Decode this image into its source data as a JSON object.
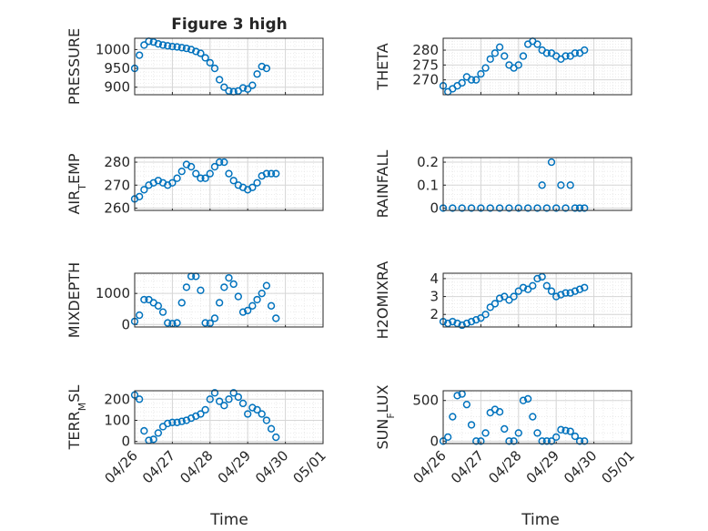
{
  "figure": {
    "title": "Figure 3 high",
    "xlabel": "Time"
  },
  "colors": {
    "marker": "#0072BD",
    "axis": "#262626",
    "grid": "#d6d6d6",
    "minorGrid": "#e6e6e6"
  },
  "chart_data": [
    {
      "type": "scatter",
      "ylabel": "PRESSURE",
      "title": "Figure 3 high",
      "x": [
        "04/26 00:00",
        "04/26 03:00",
        "04/26 06:00",
        "04/26 09:00",
        "04/26 12:00",
        "04/26 15:00",
        "04/26 18:00",
        "04/26 21:00",
        "04/27 00:00",
        "04/27 03:00",
        "04/27 06:00",
        "04/27 09:00",
        "04/27 12:00",
        "04/27 15:00",
        "04/27 18:00",
        "04/27 21:00",
        "04/28 00:00",
        "04/28 03:00",
        "04/28 06:00",
        "04/28 09:00",
        "04/28 12:00",
        "04/28 15:00",
        "04/28 18:00",
        "04/28 21:00",
        "04/29 00:00",
        "04/29 03:00",
        "04/29 06:00",
        "04/29 09:00",
        "04/29 12:00",
        "04/29 15:00",
        "04/29 18:00",
        "04/29 21:00"
      ],
      "y": [
        950,
        985,
        1012,
        1022,
        1020,
        1015,
        1012,
        1010,
        1008,
        1007,
        1005,
        1003,
        1000,
        995,
        990,
        978,
        965,
        950,
        920,
        900,
        890,
        888,
        890,
        898,
        895,
        905,
        935,
        955,
        950,
        null,
        null,
        null
      ],
      "yticks": [
        900,
        950,
        1000
      ],
      "ylim": [
        880,
        1030
      ],
      "grid": true
    },
    {
      "type": "scatter",
      "ylabel": "THETA",
      "x": [
        "04/26 00:00",
        "04/26 03:00",
        "04/26 06:00",
        "04/26 09:00",
        "04/26 12:00",
        "04/26 15:00",
        "04/26 18:00",
        "04/26 21:00",
        "04/27 00:00",
        "04/27 03:00",
        "04/27 06:00",
        "04/27 09:00",
        "04/27 12:00",
        "04/27 15:00",
        "04/27 18:00",
        "04/27 21:00",
        "04/28 00:00",
        "04/28 03:00",
        "04/28 06:00",
        "04/28 09:00",
        "04/28 12:00",
        "04/28 15:00",
        "04/28 18:00",
        "04/28 21:00",
        "04/29 00:00",
        "04/29 03:00",
        "04/29 06:00",
        "04/29 09:00",
        "04/29 12:00",
        "04/29 15:00",
        "04/29 18:00"
      ],
      "y": [
        268,
        266,
        267,
        268,
        269,
        271,
        270,
        270,
        272,
        274,
        277,
        279,
        281,
        278,
        275,
        274,
        275,
        278,
        282,
        283,
        282,
        280,
        279,
        279,
        278,
        277,
        278,
        278,
        279,
        279,
        280
      ],
      "yticks": [
        270,
        275,
        280
      ],
      "ylim": [
        265,
        284
      ],
      "grid": true
    },
    {
      "type": "scatter",
      "ylabel": "AIR_TEMP",
      "x": [
        "04/26 00:00",
        "04/26 03:00",
        "04/26 06:00",
        "04/26 09:00",
        "04/26 12:00",
        "04/26 15:00",
        "04/26 18:00",
        "04/26 21:00",
        "04/27 00:00",
        "04/27 03:00",
        "04/27 06:00",
        "04/27 09:00",
        "04/27 12:00",
        "04/27 15:00",
        "04/27 18:00",
        "04/27 21:00",
        "04/28 00:00",
        "04/28 03:00",
        "04/28 06:00",
        "04/28 09:00",
        "04/28 12:00",
        "04/28 15:00",
        "04/28 18:00",
        "04/28 21:00",
        "04/29 00:00",
        "04/29 03:00",
        "04/29 06:00",
        "04/29 09:00",
        "04/29 12:00",
        "04/29 15:00",
        "04/29 18:00"
      ],
      "y": [
        264,
        265,
        268,
        270,
        271,
        272,
        271,
        270,
        271,
        273,
        276,
        279,
        278,
        275,
        273,
        273,
        275,
        278,
        280,
        280,
        275,
        272,
        270,
        269,
        268,
        269,
        271,
        274,
        275,
        275,
        275
      ],
      "yticks": [
        260,
        270,
        280
      ],
      "ylim": [
        259,
        282
      ],
      "grid": true
    },
    {
      "type": "scatter",
      "ylabel": "RAINFALL",
      "x": [
        "04/26 00:00",
        "04/26 06:00",
        "04/26 12:00",
        "04/26 18:00",
        "04/27 00:00",
        "04/27 06:00",
        "04/27 12:00",
        "04/27 18:00",
        "04/28 00:00",
        "04/28 06:00",
        "04/28 12:00",
        "04/28 15:00",
        "04/28 18:00",
        "04/28 21:00",
        "04/29 00:00",
        "04/29 03:00",
        "04/29 06:00",
        "04/29 09:00",
        "04/29 12:00",
        "04/29 15:00",
        "04/29 18:00"
      ],
      "y": [
        0,
        0,
        0,
        0,
        0,
        0,
        0,
        0,
        0,
        0,
        0,
        0.1,
        0,
        0.2,
        0,
        0.1,
        0,
        0.1,
        0,
        0,
        0
      ],
      "yticks": [
        0,
        0.1,
        0.2
      ],
      "ylim": [
        -0.01,
        0.22
      ],
      "grid": true
    },
    {
      "type": "scatter",
      "ylabel": "MIXDEPTH",
      "x": [
        "04/26 00:00",
        "04/26 03:00",
        "04/26 06:00",
        "04/26 09:00",
        "04/26 12:00",
        "04/26 15:00",
        "04/26 18:00",
        "04/26 21:00",
        "04/27 00:00",
        "04/27 03:00",
        "04/27 06:00",
        "04/27 09:00",
        "04/27 12:00",
        "04/27 15:00",
        "04/27 18:00",
        "04/27 21:00",
        "04/28 00:00",
        "04/28 03:00",
        "04/28 06:00",
        "04/28 09:00",
        "04/28 12:00",
        "04/28 15:00",
        "04/28 18:00",
        "04/28 21:00",
        "04/29 00:00",
        "04/29 03:00",
        "04/29 06:00",
        "04/29 09:00",
        "04/29 12:00",
        "04/29 15:00",
        "04/29 18:00"
      ],
      "y": [
        100,
        300,
        800,
        800,
        700,
        600,
        400,
        50,
        30,
        50,
        700,
        1200,
        1550,
        1550,
        1100,
        50,
        40,
        200,
        700,
        1200,
        1500,
        1300,
        900,
        400,
        450,
        600,
        800,
        1000,
        1250,
        600,
        200
      ],
      "yticks": [
        0,
        1000
      ],
      "ylim": [
        -80,
        1650
      ],
      "grid": true
    },
    {
      "type": "scatter",
      "ylabel": "H2OMIXRA",
      "x": [
        "04/26 00:00",
        "04/26 03:00",
        "04/26 06:00",
        "04/26 09:00",
        "04/26 12:00",
        "04/26 15:00",
        "04/26 18:00",
        "04/26 21:00",
        "04/27 00:00",
        "04/27 03:00",
        "04/27 06:00",
        "04/27 09:00",
        "04/27 12:00",
        "04/27 15:00",
        "04/27 18:00",
        "04/27 21:00",
        "04/28 00:00",
        "04/28 03:00",
        "04/28 06:00",
        "04/28 09:00",
        "04/28 12:00",
        "04/28 15:00",
        "04/28 18:00",
        "04/28 21:00",
        "04/29 00:00",
        "04/29 03:00",
        "04/29 06:00",
        "04/29 09:00",
        "04/29 12:00",
        "04/29 15:00",
        "04/29 18:00"
      ],
      "y": [
        1.6,
        1.5,
        1.6,
        1.5,
        1.4,
        1.5,
        1.6,
        1.7,
        1.8,
        2.0,
        2.4,
        2.6,
        2.9,
        3.0,
        2.8,
        3.0,
        3.3,
        3.5,
        3.4,
        3.6,
        4.0,
        4.1,
        3.6,
        3.3,
        3.0,
        3.1,
        3.2,
        3.2,
        3.3,
        3.4,
        3.5
      ],
      "yticks": [
        2,
        3,
        4
      ],
      "ylim": [
        1.3,
        4.3
      ],
      "grid": true
    },
    {
      "type": "scatter",
      "ylabel": "TERR_MSL",
      "x": [
        "04/26 00:00",
        "04/26 03:00",
        "04/26 06:00",
        "04/26 09:00",
        "04/26 12:00",
        "04/26 15:00",
        "04/26 18:00",
        "04/26 21:00",
        "04/27 00:00",
        "04/27 03:00",
        "04/27 06:00",
        "04/27 09:00",
        "04/27 12:00",
        "04/27 15:00",
        "04/27 18:00",
        "04/27 21:00",
        "04/28 00:00",
        "04/28 03:00",
        "04/28 06:00",
        "04/28 09:00",
        "04/28 12:00",
        "04/28 15:00",
        "04/28 18:00",
        "04/28 21:00",
        "04/29 00:00",
        "04/29 03:00",
        "04/29 06:00",
        "04/29 09:00",
        "04/29 12:00",
        "04/29 15:00",
        "04/29 18:00"
      ],
      "y": [
        220,
        200,
        50,
        5,
        10,
        40,
        70,
        85,
        90,
        90,
        95,
        100,
        110,
        120,
        130,
        150,
        200,
        230,
        190,
        170,
        200,
        230,
        210,
        180,
        130,
        160,
        150,
        130,
        100,
        60,
        20
      ],
      "yticks": [
        0,
        100,
        200
      ],
      "ylim": [
        -10,
        240
      ],
      "grid": true
    },
    {
      "type": "scatter",
      "ylabel": "SUN_FLUX",
      "x": [
        "04/26 00:00",
        "04/26 03:00",
        "04/26 06:00",
        "04/26 09:00",
        "04/26 12:00",
        "04/26 15:00",
        "04/26 18:00",
        "04/26 21:00",
        "04/27 00:00",
        "04/27 03:00",
        "04/27 06:00",
        "04/27 09:00",
        "04/27 12:00",
        "04/27 15:00",
        "04/27 18:00",
        "04/27 21:00",
        "04/28 00:00",
        "04/28 03:00",
        "04/28 06:00",
        "04/28 09:00",
        "04/28 12:00",
        "04/28 15:00",
        "04/28 18:00",
        "04/28 21:00",
        "04/29 00:00",
        "04/29 03:00",
        "04/29 06:00",
        "04/29 09:00",
        "04/29 12:00",
        "04/29 15:00",
        "04/29 18:00"
      ],
      "y": [
        0,
        50,
        300,
        560,
        580,
        450,
        200,
        0,
        0,
        100,
        350,
        390,
        360,
        150,
        0,
        0,
        100,
        500,
        520,
        300,
        100,
        0,
        0,
        0,
        50,
        140,
        130,
        120,
        60,
        0,
        0
      ],
      "yticks": [
        0,
        500
      ],
      "ylim": [
        -30,
        620
      ],
      "grid": true
    }
  ],
  "xaxis": {
    "ticks": [
      "04/26",
      "04/27",
      "04/28",
      "04/29",
      "04/30",
      "05/01"
    ],
    "range": [
      "04/26 00:00",
      "05/01 00:00"
    ]
  }
}
